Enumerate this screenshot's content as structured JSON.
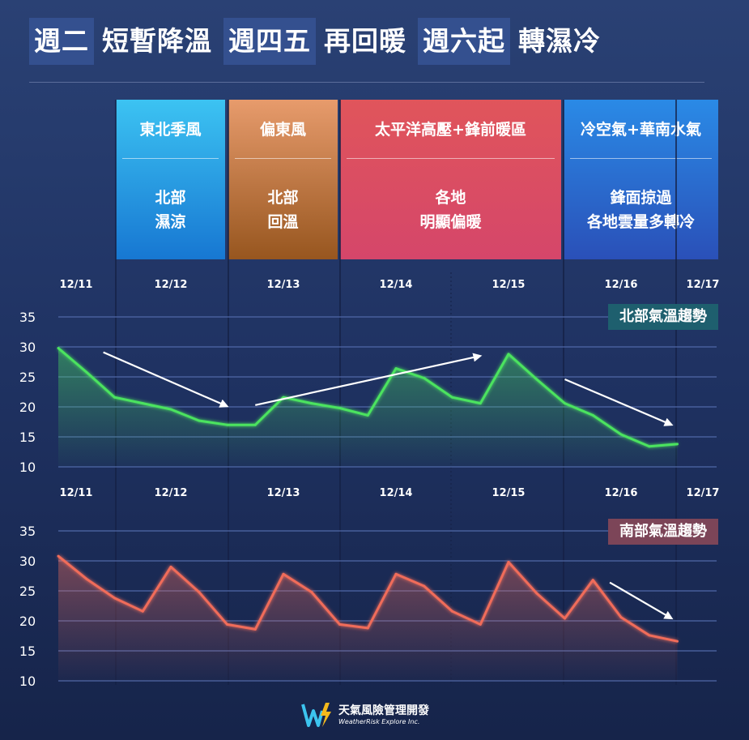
{
  "title": {
    "chunks": [
      {
        "text": "週二",
        "highlight": true
      },
      {
        "text": "短暫降溫",
        "highlight": false
      },
      {
        "text": "週四五",
        "highlight": true
      },
      {
        "text": "再回暖",
        "highlight": false
      },
      {
        "text": "週六起",
        "highlight": true
      },
      {
        "text": "轉濕冷",
        "highlight": false
      }
    ]
  },
  "panels": [
    {
      "head": "東北季風",
      "body": [
        "北部",
        "濕涼"
      ],
      "colors": [
        "#3cc3f2",
        "#1777d2"
      ]
    },
    {
      "head": "偏東風",
      "body": [
        "北部",
        "回溫"
      ],
      "colors": [
        "#e79b6c",
        "#97561f"
      ]
    },
    {
      "head": "太平洋高壓+鋒前暖區",
      "body": [
        "各地",
        "明顯偏暖"
      ],
      "colors": [
        "#e0555b",
        "#d5466a"
      ]
    },
    {
      "head": "冷空氣+華南水氣",
      "body": [
        "鋒面掠過",
        "各地雲量多轉冷"
      ],
      "colors": [
        "#2a8ae6",
        "#2a50b8"
      ]
    }
  ],
  "brand": {
    "name_cn": "天氣風險管理開發",
    "name_en": "WeatherRisk Explore Inc.",
    "colors": [
      "#3cc4ef",
      "#f4b91c"
    ]
  },
  "chart_data": [
    {
      "type": "line",
      "title": "北部氣溫趨勢",
      "badge_color": "#1e5f6e",
      "line_color": "#4be35f",
      "categories": [
        "12/11",
        "12/12",
        "12/13",
        "12/14",
        "12/15",
        "12/16",
        "12/17"
      ],
      "x": [
        0,
        0.25,
        0.5,
        0.75,
        1,
        1.25,
        1.5,
        1.75,
        2,
        2.25,
        2.5,
        2.75,
        3,
        3.25,
        3.5,
        3.75,
        4,
        4.25,
        4.5,
        4.75,
        5,
        5.25,
        5.5
      ],
      "values": [
        29.8,
        25.8,
        21.6,
        20.6,
        19.6,
        17.7,
        17,
        17,
        21.6,
        20.6,
        19.8,
        18.6,
        26.4,
        24.8,
        21.6,
        20.6,
        28.8,
        24.6,
        20.6,
        18.6,
        15.4,
        13.4,
        13.8
      ],
      "ylim": [
        10,
        35
      ],
      "yticks": [
        10,
        15,
        20,
        25,
        30,
        35
      ],
      "grid": true,
      "trend_arrows": [
        [
          [
            0.4,
            29.1
          ],
          [
            1.5,
            20.1
          ]
        ],
        [
          [
            1.75,
            20.3
          ],
          [
            3.75,
            28.5
          ]
        ],
        [
          [
            4.5,
            24.6
          ],
          [
            5.45,
            17
          ]
        ]
      ]
    },
    {
      "type": "line",
      "title": "南部氣溫趨勢",
      "badge_color": "#7c4558",
      "line_color": "#f06c5a",
      "categories": [
        "12/11",
        "12/12",
        "12/13",
        "12/14",
        "12/15",
        "12/16",
        "12/17"
      ],
      "x": [
        0,
        0.25,
        0.5,
        0.75,
        1,
        1.25,
        1.5,
        1.75,
        2,
        2.25,
        2.5,
        2.75,
        3,
        3.25,
        3.5,
        3.75,
        4,
        4.25,
        4.5,
        4.75,
        5,
        5.25,
        5.5
      ],
      "values": [
        30.8,
        27,
        23.8,
        21.6,
        29,
        24.8,
        19.4,
        18.6,
        27.8,
        24.8,
        19.4,
        18.8,
        27.8,
        25.8,
        21.6,
        19.4,
        29.8,
        24.6,
        20.4,
        26.8,
        20.6,
        17.6,
        16.6
      ],
      "ylim": [
        10,
        35
      ],
      "yticks": [
        10,
        15,
        20,
        25,
        30,
        35
      ],
      "grid": true,
      "trend_arrows": [
        [
          [
            4.9,
            26.4
          ],
          [
            5.45,
            20.4
          ]
        ]
      ]
    }
  ]
}
